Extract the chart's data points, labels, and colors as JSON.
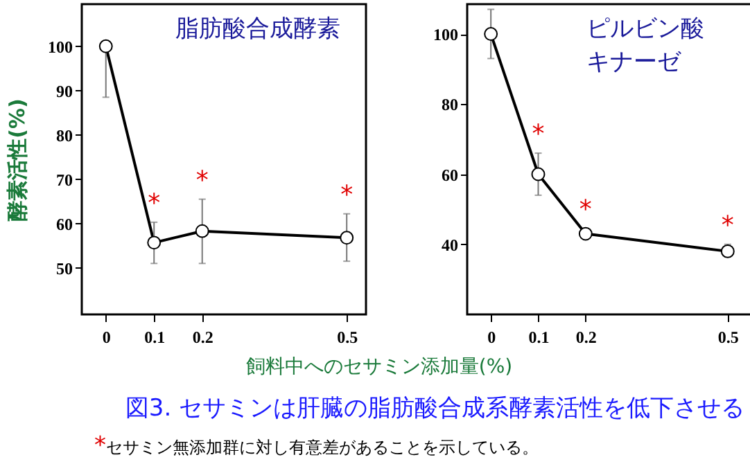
{
  "chart_data": [
    {
      "type": "line",
      "title": "脂肪酸合成酵素",
      "ylabel": "酵素活性(%)",
      "xlabel": "飼料中へのセサミン添加量(%)",
      "x": [
        0,
        0.1,
        0.2,
        0.5
      ],
      "series": [
        {
          "color": "#000000",
          "values": [
            100,
            55.7,
            58.3,
            56.8
          ],
          "errors": [
            [
              88.5,
              100
            ],
            [
              51,
              60.3
            ],
            [
              51,
              65.5
            ],
            [
              51.5,
              62.2
            ]
          ]
        }
      ],
      "xlim": [
        -0.05,
        0.54
      ],
      "xticks": [
        0,
        0.1,
        0.2,
        0.5
      ],
      "ylim": [
        39.5,
        109.5
      ],
      "yticks": [
        50,
        60,
        70,
        80,
        90,
        100
      ],
      "grid": false,
      "marker": "circle",
      "annotations": [
        {
          "text": "*",
          "x": 0.1,
          "y": 60.3
        },
        {
          "text": "*",
          "x": 0.2,
          "y": 65.5
        },
        {
          "text": "*",
          "x": 0.5,
          "y": 62.2
        },
        "図3. セサミンは肝臓の脂肪酸合成系酵素活性を低下させる",
        "*セサミン無添加群に対し有意差があることを示している。"
      ]
    },
    {
      "type": "line",
      "title": "ピルビン酸",
      "subtitle": "キナーゼ",
      "x": [
        0,
        0.1,
        0.2,
        0.5
      ],
      "series": [
        {
          "color": "#000000",
          "values": [
            100,
            60,
            43,
            38
          ],
          "errors": [
            [
              93,
              107
            ],
            [
              54,
              66
            ],
            [
              41.5,
              44.5
            ],
            [
              36.5,
              40
            ]
          ]
        }
      ],
      "xlim": [
        -0.05,
        0.55
      ],
      "xticks": [
        0,
        0.1,
        0.2,
        0.5
      ],
      "ylim": [
        20,
        108.5
      ],
      "yticks": [
        40,
        60,
        80,
        100
      ],
      "grid": false,
      "marker": "circle",
      "annotations": [
        {
          "text": "*",
          "x": 0.1,
          "y": 66
        },
        {
          "text": "*",
          "x": 0.2,
          "y": 44.5
        },
        {
          "text": "*",
          "x": 0.5,
          "y": 40
        }
      ]
    }
  ]
}
